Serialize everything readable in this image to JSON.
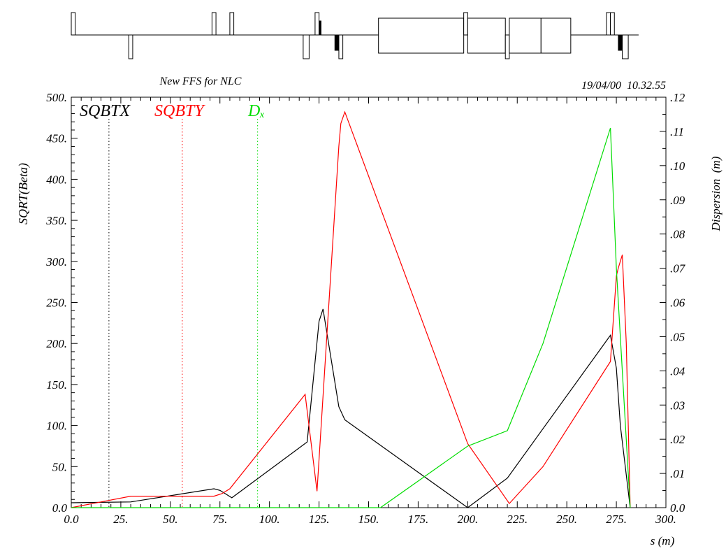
{
  "chart_data": {
    "type": "line",
    "title": "New FFS for NLC",
    "timestamp": "19/04/00  10.32.55",
    "xlabel": "s (m)",
    "ylabel_left": "SQRT(Beta)",
    "ylabel_right": "Dispersion  (m)",
    "xlim": [
      0,
      300
    ],
    "ylim_left": [
      0,
      500
    ],
    "ylim_right": [
      0,
      0.12
    ],
    "x_ticks": [
      "0.0",
      "25.",
      "50.",
      "75.",
      "100.",
      "125.",
      "150.",
      "175.",
      "200.",
      "225.",
      "250.",
      "275.",
      "300."
    ],
    "y_ticks_left": [
      "0.0",
      "50.",
      "100.",
      "150.",
      "200.",
      "250.",
      "300.",
      "350.",
      "400.",
      "450.",
      "500."
    ],
    "y_ticks_right": [
      "0.0",
      ".01",
      ".02",
      ".03",
      ".04",
      ".05",
      ".06",
      ".07",
      ".08",
      ".09",
      ".10",
      ".11",
      ".12"
    ],
    "grid": false,
    "legend": [
      {
        "label": "SQBTX",
        "color": "#000000",
        "marker_x": 19
      },
      {
        "label": "SQBTY",
        "color": "#ff0000",
        "marker_x": 56
      },
      {
        "label": "Dₓ",
        "color": "#00dd00",
        "marker_x": 94
      }
    ],
    "series": [
      {
        "name": "SQBTX",
        "axis": "left",
        "color": "#000000",
        "x": [
          0,
          30,
          72,
          75,
          81,
          119,
          125,
          127,
          135,
          138,
          200,
          220,
          272,
          275,
          277,
          282
        ],
        "y": [
          6,
          7,
          23,
          21,
          12,
          80,
          227,
          242,
          123,
          107,
          0,
          36,
          210,
          170,
          100,
          0
        ]
      },
      {
        "name": "SQBTY",
        "axis": "left",
        "color": "#ff0000",
        "x": [
          0,
          30,
          72,
          76,
          80,
          118,
          124,
          135,
          136,
          138,
          200,
          221,
          238,
          272,
          275,
          276,
          278,
          280,
          282
        ],
        "y": [
          0,
          14,
          14,
          17,
          23,
          138,
          20,
          440,
          468,
          482,
          78,
          5,
          50,
          178,
          282,
          292,
          308,
          200,
          0
        ]
      },
      {
        "name": "Dₓ",
        "axis": "right",
        "color": "#00dd00",
        "x": [
          0,
          156,
          200,
          220,
          238,
          272,
          275,
          282
        ],
        "y": [
          0,
          0,
          0.018,
          0.0225,
          0.048,
          0.111,
          0.07,
          0
        ]
      }
    ]
  },
  "lattice": {
    "elements": [
      {
        "s0": 0,
        "s1": 2,
        "side": "up",
        "type": "quad"
      },
      {
        "s0": 29,
        "s1": 31,
        "side": "down",
        "type": "quad"
      },
      {
        "s0": 71,
        "s1": 73,
        "side": "up",
        "type": "quad"
      },
      {
        "s0": 80,
        "s1": 82,
        "side": "up",
        "type": "quad"
      },
      {
        "s0": 117,
        "s1": 120,
        "side": "down",
        "type": "quad"
      },
      {
        "s0": 123,
        "s1": 125,
        "side": "up",
        "type": "quad"
      },
      {
        "s0": 125,
        "s1": 126,
        "side": "up",
        "type": "sext"
      },
      {
        "s0": 133,
        "s1": 134,
        "side": "down",
        "type": "sext"
      },
      {
        "s0": 134,
        "s1": 135,
        "side": "down",
        "type": "sext"
      },
      {
        "s0": 135,
        "s1": 137,
        "side": "down",
        "type": "quad"
      },
      {
        "s0": 155,
        "s1": 198,
        "side": "both",
        "type": "bend"
      },
      {
        "s0": 198,
        "s1": 200,
        "side": "up",
        "type": "quad"
      },
      {
        "s0": 200,
        "s1": 219,
        "side": "both",
        "type": "bend"
      },
      {
        "s0": 219,
        "s1": 221,
        "side": "down",
        "type": "quad"
      },
      {
        "s0": 221,
        "s1": 237,
        "side": "both",
        "type": "bend"
      },
      {
        "s0": 237,
        "s1": 252,
        "side": "both",
        "type": "bend"
      },
      {
        "s0": 270,
        "s1": 272,
        "side": "up",
        "type": "quad"
      },
      {
        "s0": 272,
        "s1": 274,
        "side": "up",
        "type": "quad"
      },
      {
        "s0": 276,
        "s1": 277,
        "side": "down",
        "type": "sext"
      },
      {
        "s0": 277,
        "s1": 278,
        "side": "down",
        "type": "sext"
      },
      {
        "s0": 278,
        "s1": 281,
        "side": "down",
        "type": "quad"
      }
    ]
  }
}
